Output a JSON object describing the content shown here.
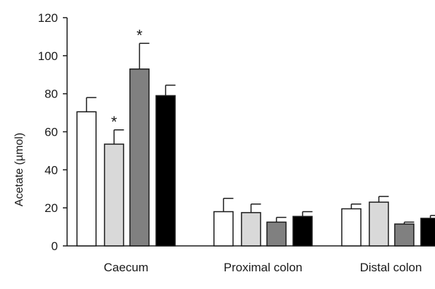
{
  "chart_data": {
    "type": "bar",
    "title": "",
    "xlabel": "",
    "ylabel": "Acetate (µmol)",
    "ylim": [
      0,
      120
    ],
    "yticks": [
      0,
      20,
      40,
      60,
      80,
      100,
      120
    ],
    "grid": false,
    "legend": "none",
    "categories": [
      "Caecum",
      "Proximal colon",
      "Distal colon"
    ],
    "series": [
      {
        "color": "#ffffff",
        "values": [
          70.5,
          18,
          19.5
        ],
        "errors": [
          7.5,
          7,
          2.5
        ],
        "significant": [
          false,
          false,
          false
        ]
      },
      {
        "color": "#d9d9d9",
        "values": [
          53.5,
          17.5,
          23
        ],
        "errors": [
          7.5,
          4.5,
          3
        ],
        "significant": [
          true,
          false,
          false
        ]
      },
      {
        "color": "#808080",
        "values": [
          93,
          12.5,
          11.5
        ],
        "errors": [
          13.5,
          2.5,
          1
        ],
        "significant": [
          true,
          false,
          false
        ]
      },
      {
        "color": "#000000",
        "values": [
          79,
          15.5,
          14.5
        ],
        "errors": [
          5.5,
          2.5,
          1.5
        ],
        "significant": [
          false,
          false,
          false
        ]
      }
    ],
    "significance_marker": "*"
  }
}
